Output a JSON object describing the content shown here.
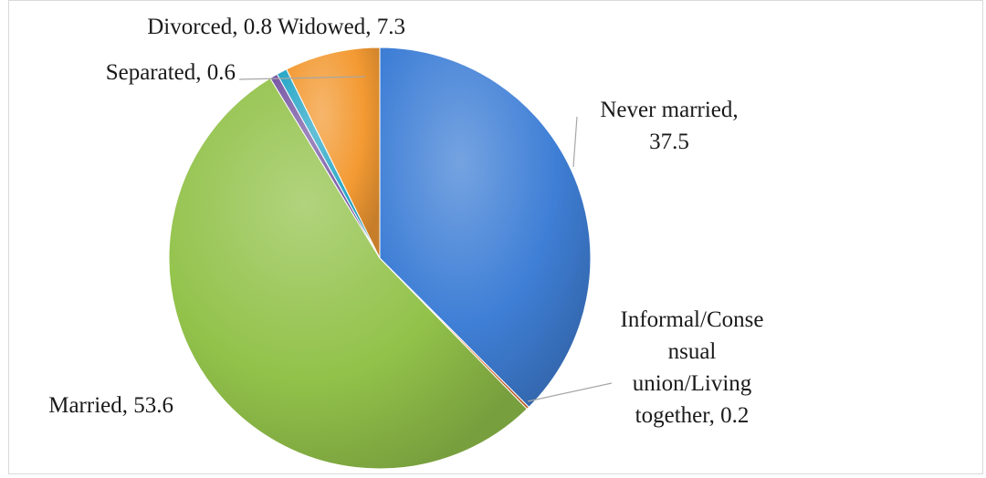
{
  "chart_data": {
    "type": "pie",
    "title": "",
    "slices": [
      {
        "name": "Never married",
        "value": 37.5,
        "color": "#3f7fd6",
        "label_lines": [
          "Never married,",
          "37.5"
        ]
      },
      {
        "name": "Informal/Consensual union/Living together",
        "value": 0.2,
        "color": "#e06a2a",
        "label_lines": [
          "Informal/Conse",
          "nsual",
          "union/Living",
          "together, 0.2"
        ]
      },
      {
        "name": "Married",
        "value": 53.6,
        "color": "#92c24a",
        "label_lines": [
          "Married, 53.6"
        ]
      },
      {
        "name": "Separated",
        "value": 0.6,
        "color": "#7a5aa6",
        "label_lines": [
          "Separated, 0.6"
        ]
      },
      {
        "name": "Divorced",
        "value": 0.8,
        "color": "#2aa8c8",
        "label_lines": [
          "Divorced, 0.8"
        ]
      },
      {
        "name": "Widowed",
        "value": 7.3,
        "color": "#f39a33",
        "label_lines": [
          "Widowed, 7.3"
        ]
      }
    ],
    "start": "top",
    "direction": "clockwise",
    "style": "3d-shaded",
    "legend": "none",
    "data_labels": "outside with leader lines"
  }
}
